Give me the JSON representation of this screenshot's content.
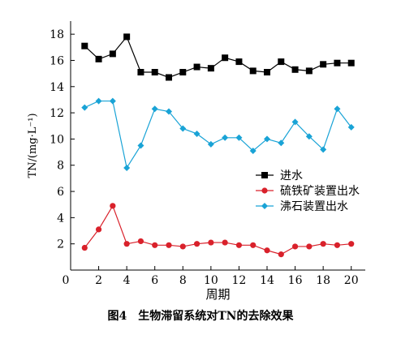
{
  "chart_data": {
    "type": "line",
    "xlabel": "周期",
    "ylabel": "TN/(mg·L⁻¹)",
    "xlim": [
      0,
      21
    ],
    "ylim": [
      0,
      19
    ],
    "xticks": [
      0,
      2,
      4,
      6,
      8,
      10,
      12,
      14,
      16,
      18,
      20
    ],
    "yticks": [
      0,
      2,
      4,
      6,
      8,
      10,
      12,
      14,
      16,
      18
    ],
    "legend_position": "center-right",
    "grid": false,
    "x": [
      1,
      2,
      3,
      4,
      5,
      6,
      7,
      8,
      9,
      10,
      11,
      12,
      13,
      14,
      15,
      16,
      17,
      18,
      19,
      20
    ],
    "series": [
      {
        "name": "进水",
        "color": "#000000",
        "marker": "square",
        "values": [
          17.1,
          16.1,
          16.5,
          17.8,
          15.1,
          15.1,
          14.7,
          15.1,
          15.5,
          15.4,
          16.2,
          15.9,
          15.2,
          15.1,
          15.9,
          15.3,
          15.2,
          15.7,
          15.8,
          15.8
        ]
      },
      {
        "name": "硫铁矿装置出水",
        "color": "#d9212b",
        "marker": "circle",
        "values": [
          1.7,
          3.1,
          4.9,
          2.0,
          2.2,
          1.9,
          1.9,
          1.8,
          2.0,
          2.1,
          2.1,
          1.9,
          1.9,
          1.5,
          1.2,
          1.8,
          1.8,
          2.0,
          1.9,
          2.0
        ]
      },
      {
        "name": "沸石装置出水",
        "color": "#19a3d6",
        "marker": "diamond",
        "values": [
          12.4,
          12.9,
          12.9,
          7.8,
          9.5,
          12.3,
          12.1,
          10.8,
          10.4,
          9.6,
          10.1,
          10.1,
          9.1,
          10.0,
          9.7,
          11.3,
          10.2,
          9.2,
          12.3,
          10.9
        ]
      }
    ]
  },
  "caption": "图4　生物滞留系统对TN的去除效果"
}
